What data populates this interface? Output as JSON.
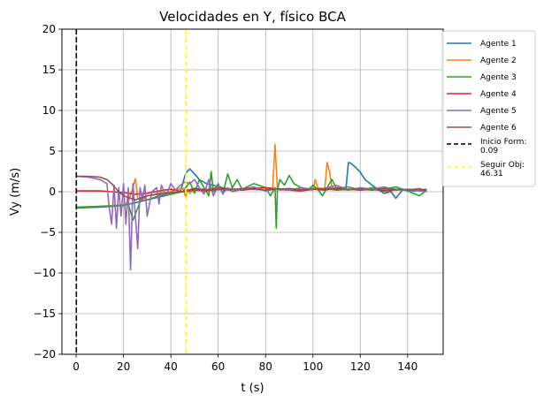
{
  "chart_data": {
    "type": "line",
    "title": "Velocidades en Y, físico BCA",
    "xlabel": "t (s)",
    "ylabel": "Vy (m/s)",
    "xlim": [
      -6,
      155
    ],
    "ylim": [
      -20,
      20
    ],
    "xticks": [
      0,
      20,
      40,
      60,
      80,
      100,
      120,
      140
    ],
    "xtick_labels": [
      "0",
      "20",
      "40",
      "60",
      "80",
      "100",
      "120",
      "140"
    ],
    "yticks": [
      -20,
      -15,
      -10,
      -5,
      0,
      5,
      10,
      15,
      20
    ],
    "ytick_labels": [
      "−20",
      "−15",
      "−10",
      "−5",
      "0",
      "5",
      "10",
      "15",
      "20"
    ],
    "grid": true,
    "legend_position": "outside-right",
    "series": [
      {
        "name": "Agente 1",
        "color": "#1f77b4",
        "x": [
          0,
          10,
          20,
          30,
          40,
          44,
          46.3,
          48,
          50,
          52,
          55,
          58,
          60,
          65,
          70,
          75,
          80,
          85,
          90,
          95,
          100,
          105,
          110,
          114,
          115,
          116,
          118,
          120,
          122,
          125,
          128,
          130,
          133,
          135,
          138,
          140,
          143,
          145,
          148
        ],
        "y": [
          -2.0,
          -1.9,
          -1.7,
          -1.0,
          -0.3,
          0.0,
          2.3,
          2.8,
          2.2,
          1.5,
          1.0,
          0.8,
          0.6,
          0.3,
          0.2,
          0.4,
          0.5,
          0.3,
          0.2,
          0.3,
          0.4,
          0.3,
          0.5,
          0.5,
          3.6,
          3.5,
          3.0,
          2.4,
          1.5,
          0.8,
          0.2,
          -0.2,
          0.0,
          -0.8,
          0.3,
          0.2,
          0.1,
          0.2,
          0.3
        ]
      },
      {
        "name": "Agente 2",
        "color": "#ff7f0e",
        "x": [
          0,
          10,
          20,
          22,
          24,
          25,
          26,
          28,
          30,
          35,
          40,
          45,
          46.3,
          47,
          48,
          50,
          55,
          60,
          65,
          70,
          75,
          80,
          83,
          84,
          84.5,
          85,
          86,
          90,
          95,
          100,
          101,
          102,
          105,
          106,
          107,
          108,
          110,
          115,
          120,
          125,
          130,
          135,
          140,
          145,
          148
        ],
        "y": [
          -1.9,
          -1.8,
          -1.6,
          -1.2,
          0.5,
          1.6,
          -0.8,
          -1.0,
          -0.5,
          -0.2,
          0.0,
          0.5,
          -0.7,
          0.3,
          -0.2,
          0.4,
          0.3,
          0.2,
          0.4,
          0.2,
          0.3,
          0.2,
          0.5,
          5.8,
          3.0,
          0.5,
          0.2,
          0.3,
          0.4,
          0.2,
          1.5,
          0.5,
          0.3,
          3.6,
          2.5,
          0.6,
          0.3,
          0.2,
          0.4,
          0.3,
          0.2,
          0.3,
          0.2,
          0.4,
          0.1
        ]
      },
      {
        "name": "Agente 3",
        "color": "#2ca02c",
        "x": [
          0,
          10,
          20,
          22,
          24,
          26,
          28,
          30,
          35,
          40,
          45,
          48,
          50,
          52,
          54,
          56,
          57,
          58,
          60,
          62,
          64,
          66,
          68,
          70,
          75,
          80,
          82,
          84,
          84.5,
          85,
          86,
          88,
          90,
          92,
          95,
          98,
          100,
          102,
          104,
          106,
          108,
          110,
          115,
          120,
          125,
          130,
          135,
          140,
          145,
          148
        ],
        "y": [
          -1.9,
          -1.8,
          -1.7,
          -1.5,
          -3.5,
          -2.0,
          -0.5,
          -1.0,
          -0.5,
          -0.3,
          0.0,
          1.2,
          -0.2,
          1.5,
          0.5,
          -0.5,
          2.5,
          0.0,
          1.0,
          -0.3,
          2.2,
          0.5,
          1.5,
          0.3,
          1.0,
          0.5,
          -0.5,
          0.5,
          -4.5,
          0.2,
          1.5,
          0.8,
          2.0,
          1.0,
          0.5,
          0.2,
          0.8,
          0.3,
          -0.5,
          0.5,
          1.5,
          0.4,
          0.6,
          0.2,
          0.5,
          0.3,
          0.6,
          0.1,
          -0.5,
          0.2
        ]
      },
      {
        "name": "Agente 4",
        "color": "#d62728",
        "x": [
          0,
          10,
          15,
          20,
          25,
          30,
          35,
          40,
          45,
          50,
          55,
          60,
          65,
          70,
          75,
          80,
          85,
          90,
          95,
          100,
          105,
          110,
          115,
          120,
          125,
          130,
          135,
          140,
          145,
          148
        ],
        "y": [
          0.1,
          0.1,
          0.0,
          -0.1,
          -0.3,
          -0.2,
          0.1,
          0.3,
          0.0,
          0.4,
          0.2,
          0.5,
          0.3,
          0.2,
          0.4,
          0.5,
          0.3,
          0.2,
          0.1,
          0.3,
          0.2,
          0.4,
          0.3,
          0.2,
          0.3,
          0.1,
          0.2,
          0.3,
          0.2,
          0.1
        ]
      },
      {
        "name": "Agente 5",
        "color": "#9467bd",
        "x": [
          0,
          5,
          10,
          13,
          14,
          15,
          16,
          17,
          18,
          19,
          20,
          21,
          22,
          23,
          24,
          25,
          26,
          27,
          28,
          29,
          30,
          32,
          34,
          35,
          36,
          38,
          40,
          42,
          44,
          46,
          48,
          50,
          52,
          54,
          56,
          58,
          60,
          62,
          64,
          66,
          70,
          75,
          80,
          85,
          90,
          95,
          100,
          105,
          110,
          115,
          120,
          125,
          130,
          135,
          140,
          145,
          148
        ],
        "y": [
          1.9,
          1.8,
          1.5,
          1.0,
          -2.0,
          -4.0,
          0.8,
          -4.5,
          0.5,
          -3.0,
          1.0,
          -4.0,
          0.5,
          -9.6,
          1.0,
          -3.0,
          -7.0,
          0.5,
          -1.0,
          0.8,
          -3.0,
          0.0,
          0.5,
          -1.5,
          0.8,
          -0.5,
          1.0,
          0.2,
          0.8,
          1.2,
          1.0,
          1.5,
          0.5,
          -0.3,
          1.5,
          -0.5,
          0.8,
          -0.2,
          0.5,
          0.0,
          0.3,
          0.6,
          0.1,
          0.4,
          0.2,
          0.5,
          0.3,
          0.4,
          0.8,
          0.2,
          0.5,
          0.3,
          0.6,
          0.2,
          0.3,
          0.1,
          0.0
        ]
      },
      {
        "name": "Agente 6",
        "color": "#8c564b",
        "x": [
          0,
          5,
          10,
          13,
          15,
          18,
          20,
          25,
          30,
          35,
          40,
          45,
          50,
          55,
          60,
          65,
          70,
          75,
          80,
          85,
          90,
          95,
          100,
          105,
          110,
          115,
          120,
          125,
          130,
          135,
          140,
          145,
          148
        ],
        "y": [
          1.9,
          1.9,
          1.8,
          1.5,
          1.0,
          0.0,
          -0.5,
          -1.0,
          -0.5,
          -0.3,
          -0.1,
          0.0,
          0.2,
          0.1,
          0.3,
          0.2,
          0.4,
          0.3,
          0.2,
          0.3,
          0.4,
          0.2,
          0.3,
          0.4,
          0.2,
          0.3,
          0.3,
          0.2,
          0.4,
          0.3,
          0.2,
          0.3,
          0.2
        ]
      }
    ],
    "vlines": [
      {
        "name": "Inicio Form:\n0.09",
        "x": 0.09,
        "color": "#000000",
        "style": "dashed"
      },
      {
        "name": "Seguir Obj:\n46.31",
        "x": 46.31,
        "color": "#ffff00",
        "style": "dashed"
      }
    ]
  }
}
